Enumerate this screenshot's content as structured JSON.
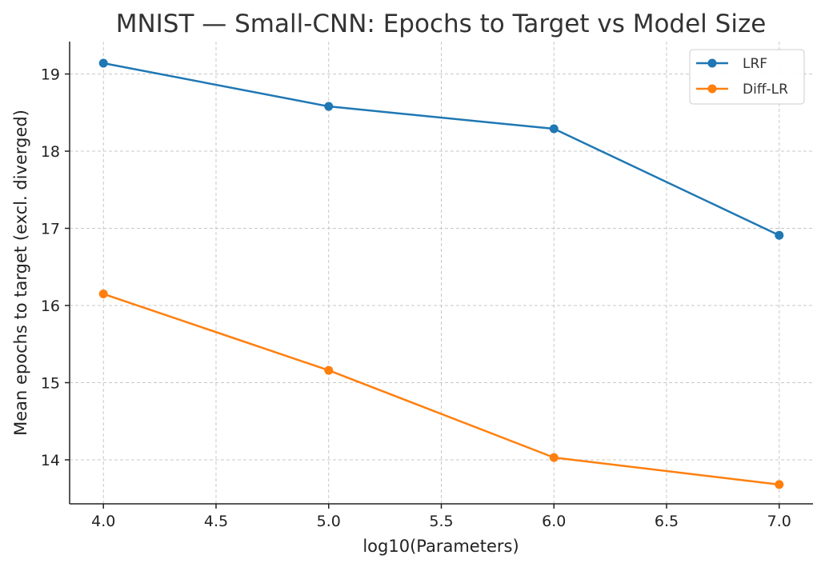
{
  "chart_data": {
    "type": "line",
    "title": "MNIST — Small-CNN: Epochs to Target vs Model Size",
    "xlabel": "log10(Parameters)",
    "ylabel": "Mean epochs to target (excl. diverged)",
    "xlim": [
      3.85,
      7.15
    ],
    "ylim": [
      13.43,
      19.42
    ],
    "xticks": [
      "4.0",
      "4.5",
      "5.0",
      "5.5",
      "6.0",
      "6.5",
      "7.0"
    ],
    "yticks": [
      "14",
      "15",
      "16",
      "17",
      "18",
      "19"
    ],
    "grid": true,
    "legend_position": "top-right",
    "x": [
      4.0,
      5.0,
      6.0,
      7.0
    ],
    "series": [
      {
        "name": "LRF",
        "color": "#1f77b4",
        "values": [
          19.14,
          18.58,
          18.29,
          16.91
        ]
      },
      {
        "name": "Diff-LR",
        "color": "#ff7f0e",
        "values": [
          16.15,
          15.16,
          14.03,
          13.68
        ]
      }
    ]
  }
}
